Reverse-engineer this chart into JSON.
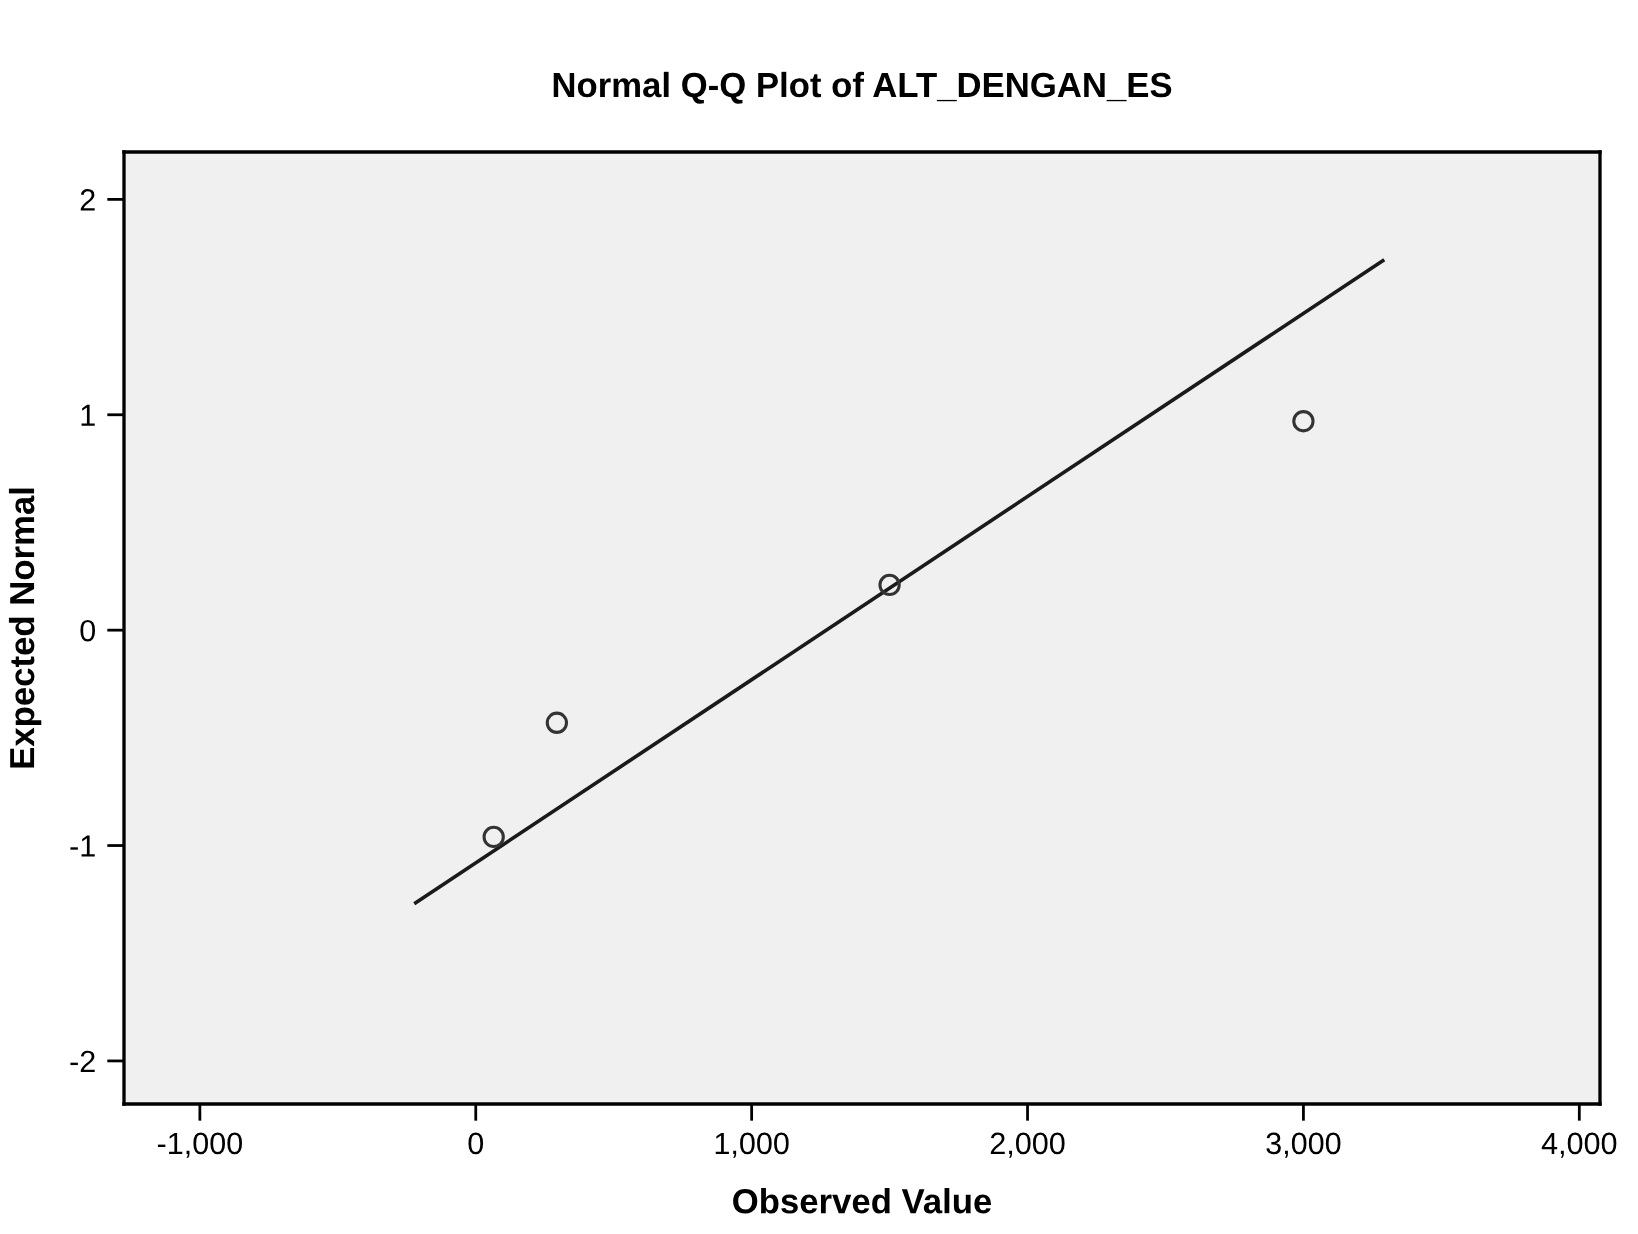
{
  "chart_data": {
    "type": "scatter",
    "title": "Normal Q-Q Plot of ALT_DENGAN_ES",
    "xlabel": "Observed Value",
    "ylabel": "Expected Normal",
    "series": [
      {
        "x": [
          65,
          294,
          1500,
          3000
        ],
        "values": [
          -0.96,
          -0.43,
          0.21,
          0.97
        ],
        "color": "#333333",
        "marker": "circle"
      },
      {
        "type": "line",
        "x": [
          -223,
          3293
        ],
        "values": [
          -1.27,
          1.72
        ],
        "color": "#1a1a1a",
        "line_style": "solid"
      }
    ],
    "xlim": [
      -1275,
      4075
    ],
    "ylim": [
      -2.2,
      2.22
    ],
    "xticks": [
      {
        "value": -1000,
        "label": "-1,000"
      },
      0,
      {
        "value": 1000,
        "label": "1,000"
      },
      {
        "value": 2000,
        "label": "2,000"
      },
      {
        "value": 3000,
        "label": "3,000"
      },
      {
        "value": 4000,
        "label": "4,000"
      }
    ],
    "yticks": [
      -2,
      -1,
      0,
      1,
      2
    ],
    "grid": false
  }
}
